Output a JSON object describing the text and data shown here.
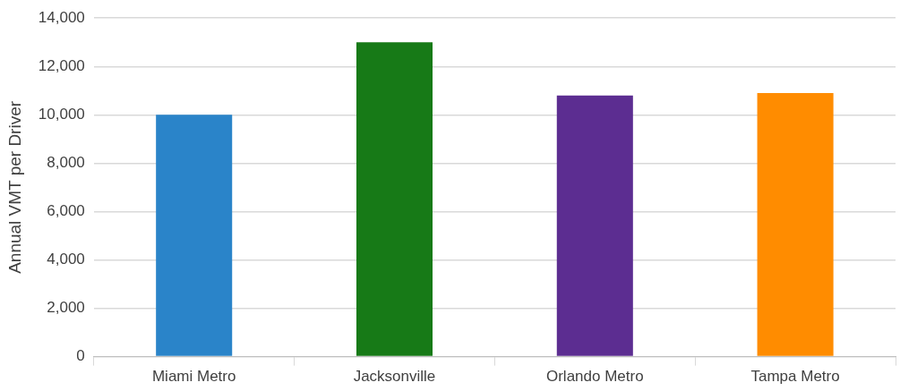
{
  "chart_data": {
    "type": "bar",
    "ylabel": "Annual VMT per Driver",
    "categories": [
      "Miami Metro",
      "Jacksonville",
      "Orlando Metro",
      "Tampa Metro"
    ],
    "values": [
      10000,
      13000,
      10800,
      10900
    ],
    "colors": [
      "#2a84c9",
      "#177a17",
      "#5c2d91",
      "#ff8c00"
    ],
    "ylim": [
      0,
      14000
    ],
    "yticks": [
      0,
      {
        "value": 2000,
        "label": "2,000"
      },
      {
        "value": 4000,
        "label": "4,000"
      },
      {
        "value": 6000,
        "label": "6,000"
      },
      {
        "value": 8000,
        "label": "8,000"
      },
      {
        "value": 10000,
        "label": "10,000"
      },
      {
        "value": 12000,
        "label": "12,000"
      },
      {
        "value": 14000,
        "label": "14,000"
      }
    ],
    "grid": "y"
  }
}
